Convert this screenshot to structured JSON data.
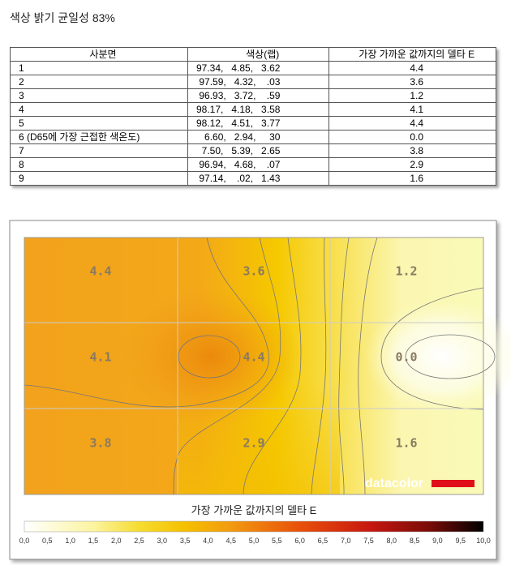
{
  "title": "색상 밝기 균일성 83%",
  "table": {
    "headers": [
      "사분면",
      "색상(랩)",
      "가장 가까운 값까지의 델타 E"
    ],
    "rows": [
      [
        "1",
        "97.34,   4.85,   3.62",
        "4.4"
      ],
      [
        "2",
        "97.59,   4.32,    .03",
        "3.6"
      ],
      [
        "3",
        "96.93,   3.72,    .59",
        "1.2"
      ],
      [
        "4",
        "98.17,   4.18,   3.58",
        "4.1"
      ],
      [
        "5",
        "98.12,   4.51,   3.77",
        "4.4"
      ],
      [
        "6 (D65에 가장 근접한 색온도)",
        "6.60,   2.94,     30",
        "0.0"
      ],
      [
        "7",
        "7.50,   5.39,   2.65",
        "3.8"
      ],
      [
        "8",
        "96.94,   4.68,    .07",
        "2.9"
      ],
      [
        "9",
        "97.14,    .02,   1.43",
        "1.6"
      ]
    ]
  },
  "map": {
    "labels": [
      [
        "4.4",
        "3.6",
        "1.2"
      ],
      [
        "4.1",
        "4.4",
        "0.0"
      ],
      [
        "3.8",
        "2.9",
        "1.6"
      ]
    ],
    "logo": "datacolor"
  },
  "legend": {
    "title": "가장 가까운 값까지의 델타 E",
    "ticks": [
      "0,0",
      "0,5",
      "1,0",
      "1,5",
      "2,0",
      "2,5",
      "3,0",
      "3,5",
      "4,0",
      "4,5",
      "5,0",
      "5,5",
      "6,0",
      "6,5",
      "7,0",
      "7,5",
      "8,0",
      "8,5",
      "9,0",
      "9,5",
      "10,0"
    ]
  }
}
